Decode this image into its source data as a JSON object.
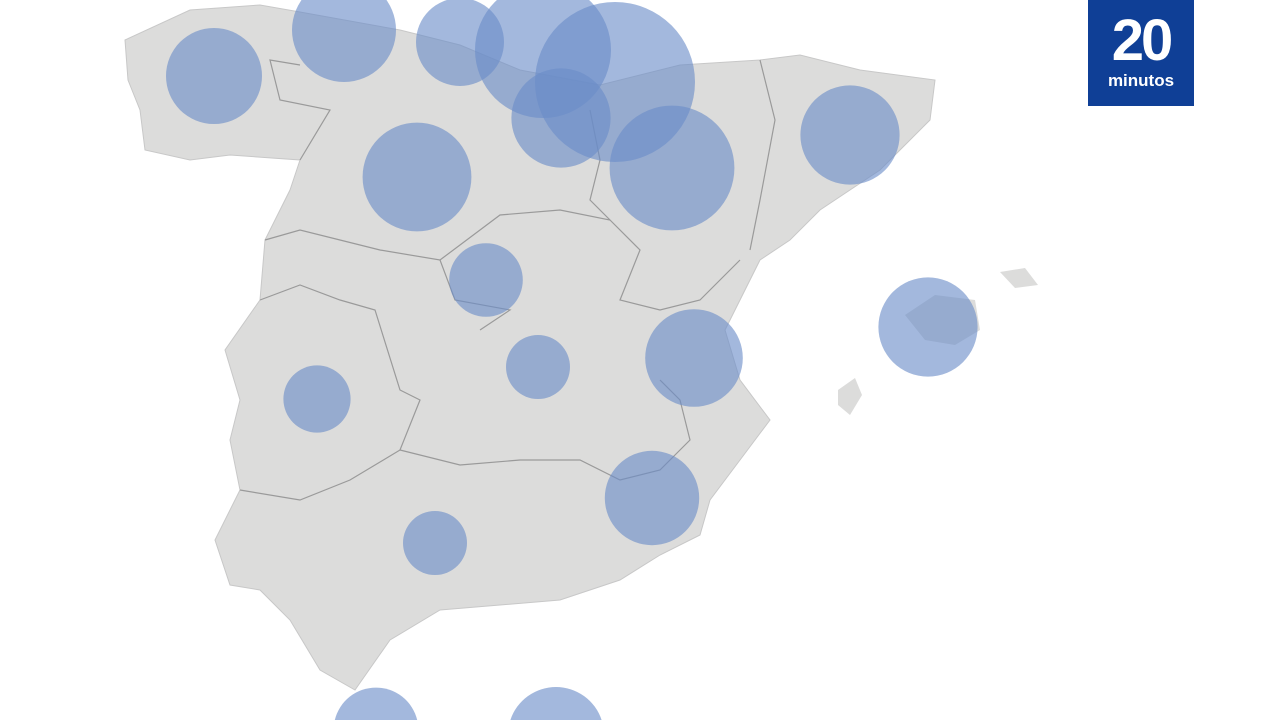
{
  "logo": {
    "number": "20",
    "word": "minutos",
    "background": "#0f3f96"
  },
  "map": {
    "land_color": "#dcdcdb",
    "border_color": "#9a9a9a",
    "bubble_color": "#6a8cc8",
    "bubbles_relative_size": [
      0.6,
      0.65,
      0.55,
      0.85,
      1.0,
      0.62,
      0.78,
      0.62,
      0.68,
      0.46,
      0.4,
      0.61,
      0.62,
      0.42,
      0.4,
      0.59,
      0.53,
      0.6
    ]
  }
}
